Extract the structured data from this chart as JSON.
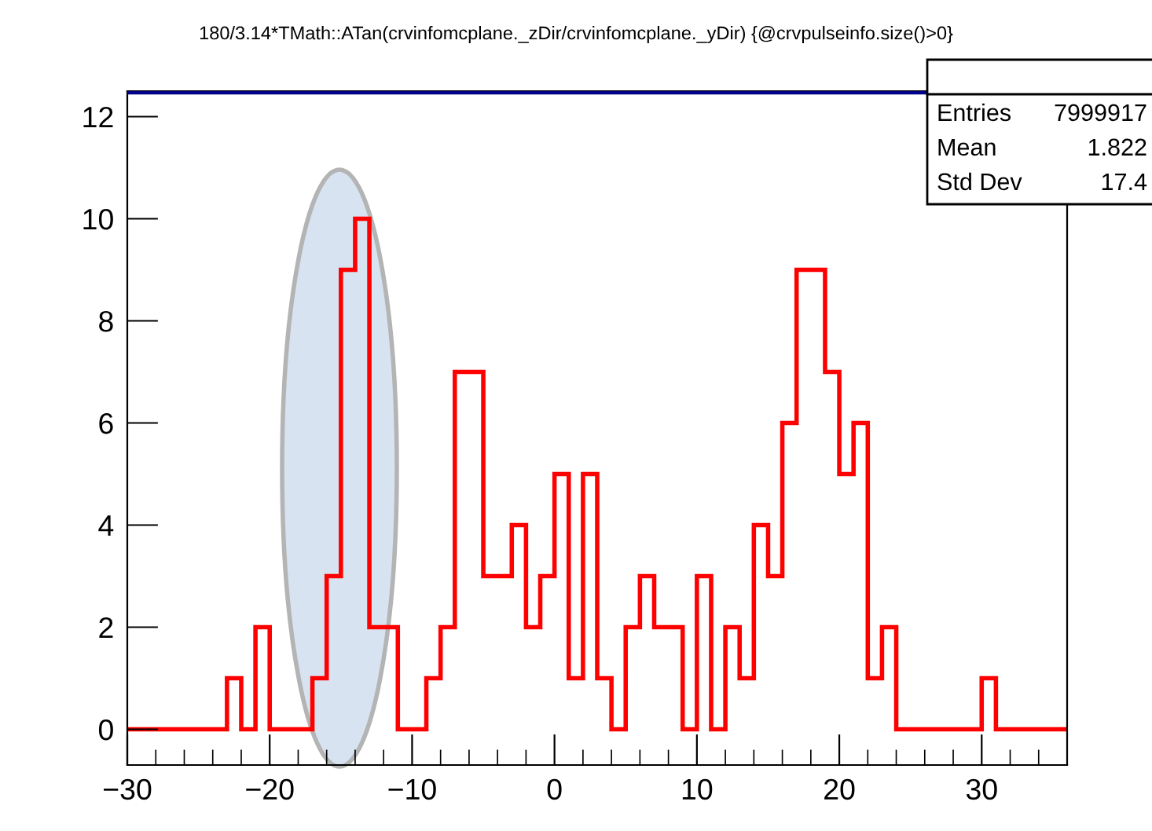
{
  "chart_data": {
    "type": "histogram",
    "title": "180/3.14*TMath::ATan(crvinfomcplane._zDir/crvinfomcplane._yDir) {@crvpulseinfo.size()>0}",
    "bins": [
      -30,
      -29,
      -28,
      -27,
      -26,
      -25,
      -24,
      -23,
      -22,
      -21,
      -20,
      -19,
      -18,
      -17,
      -16,
      -15,
      -14,
      -13,
      -12,
      -11,
      -10,
      -9,
      -8,
      -7,
      -6,
      -5,
      -4,
      -3,
      -2,
      -1,
      0,
      1,
      2,
      3,
      4,
      5,
      6,
      7,
      8,
      9,
      10,
      11,
      12,
      13,
      14,
      15,
      16,
      17,
      18,
      19,
      20,
      21,
      22,
      23,
      24,
      25,
      26,
      27,
      28,
      29,
      30,
      31,
      32,
      33,
      34,
      35,
      36
    ],
    "values": [
      0,
      0,
      0,
      0,
      0,
      0,
      0,
      1,
      0,
      2,
      0,
      0,
      0,
      1,
      3,
      9,
      10,
      2,
      2,
      0,
      0,
      1,
      2,
      7,
      7,
      3,
      3,
      4,
      2,
      3,
      5,
      1,
      5,
      1,
      0,
      2,
      3,
      2,
      2,
      0,
      3,
      0,
      2,
      1,
      4,
      3,
      6,
      9,
      9,
      7,
      5,
      6,
      1,
      2,
      0,
      0,
      0,
      0,
      0,
      0,
      1,
      0,
      0,
      0,
      0,
      0
    ],
    "color": "#ff0000",
    "xlim": [
      -30,
      36
    ],
    "xticks": [
      -30,
      -20,
      -10,
      0,
      10,
      20,
      30
    ],
    "ylim": [
      -0.7,
      12.5
    ],
    "yticks": [
      0,
      2,
      4,
      6,
      8,
      10,
      12
    ],
    "ref_lines": [
      {
        "axis": "y",
        "value": 12.5,
        "color": "#00008b"
      }
    ],
    "annotations": [
      "Entries 7999917",
      "Mean 1.822",
      "Std Dev 17.4"
    ],
    "grid": false,
    "legend": false
  }
}
